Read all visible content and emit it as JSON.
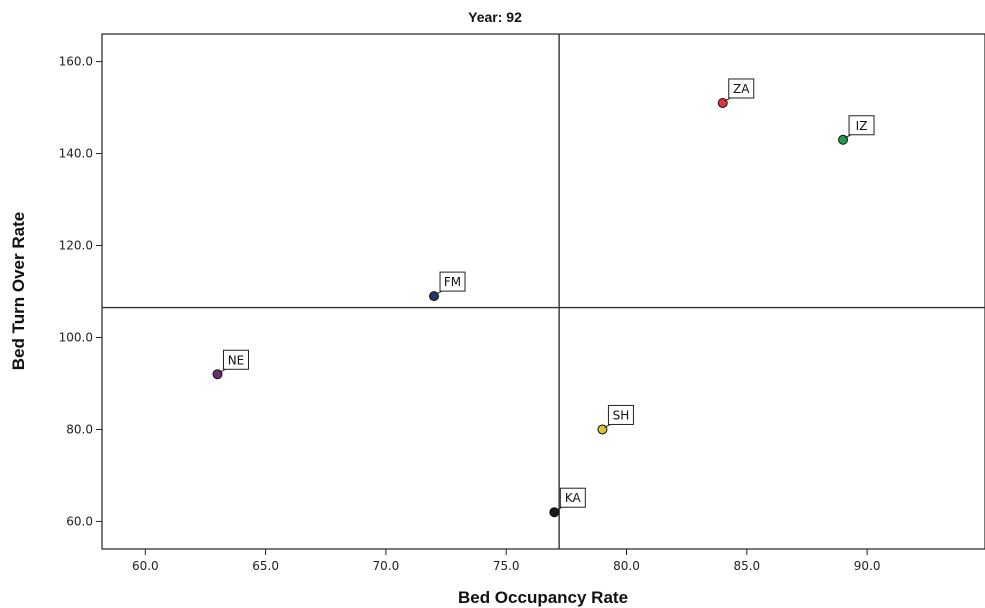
{
  "chart_data": {
    "type": "scatter",
    "title": "Year: 92",
    "xlabel": "Bed Occupancy Rate",
    "ylabel": "Bed Turn Over Rate",
    "xlim": [
      58.2,
      94.9
    ],
    "ylim": [
      54.0,
      166.0
    ],
    "x_ticks": [
      60.0,
      65.0,
      70.0,
      75.0,
      80.0,
      85.0,
      90.0
    ],
    "y_ticks": [
      60.0,
      80.0,
      100.0,
      120.0,
      140.0,
      160.0
    ],
    "x_tick_labels": [
      "60.0",
      "65.0",
      "70.0",
      "75.0",
      "80.0",
      "85.0",
      "90.0"
    ],
    "y_tick_labels": [
      "60.0",
      "80.0",
      "100.0",
      "120.0",
      "140.0",
      "160.0"
    ],
    "reference_lines": {
      "x": 77.2,
      "y": 106.5
    },
    "grid": false,
    "points": [
      {
        "label": "ZA",
        "x": 84.0,
        "y": 151.0,
        "color": "#e0353a"
      },
      {
        "label": "IZ",
        "x": 89.0,
        "y": 143.0,
        "color": "#1e9b4c"
      },
      {
        "label": "FM",
        "x": 72.0,
        "y": 109.0,
        "color": "#22366e"
      },
      {
        "label": "NE",
        "x": 63.0,
        "y": 92.0,
        "color": "#6a2f6e"
      },
      {
        "label": "SH",
        "x": 79.0,
        "y": 80.0,
        "color": "#d8c23a"
      },
      {
        "label": "KA",
        "x": 77.0,
        "y": 62.0,
        "color": "#1a1a1a"
      }
    ]
  }
}
